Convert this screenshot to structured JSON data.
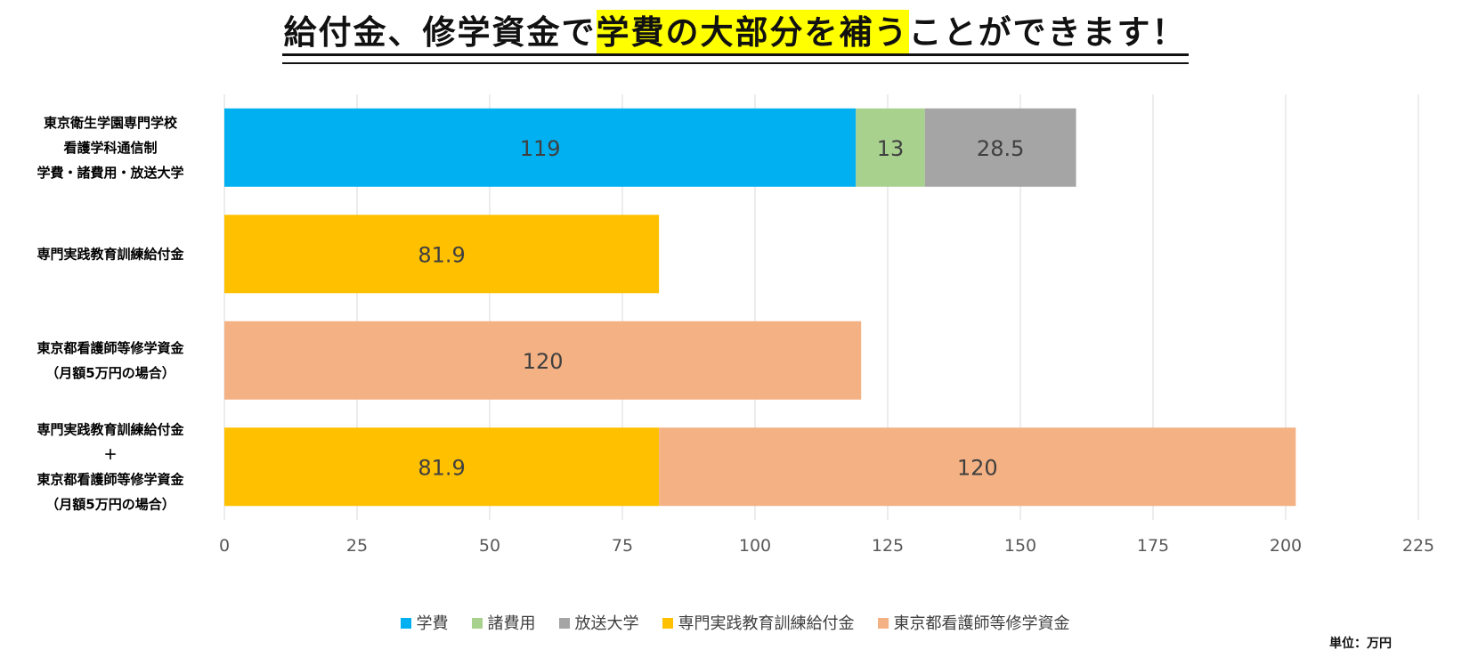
{
  "title": {
    "part1": "給付金、修学資金で",
    "highlight": "学費の大部分を補う",
    "part2": "ことができます！"
  },
  "unit_label": "単位：万円",
  "colors": {
    "学費": "#00b0f0",
    "諸費用": "#a9d18e",
    "放送大学": "#a5a5a5",
    "専門実践教育訓練給付金": "#ffc000",
    "東京都看護師等修学資金": "#f4b183"
  },
  "chart_data": {
    "type": "bar",
    "orientation": "horizontal",
    "stacked": true,
    "xlim": [
      0,
      225
    ],
    "x_ticks": [
      0,
      25,
      50,
      75,
      100,
      125,
      150,
      175,
      200,
      225
    ],
    "grid": true,
    "legend_position": "bottom",
    "categories": [
      [
        "東京衛生学園専門学校",
        "看護学科通信制",
        "学費・諸費用・放送大学"
      ],
      [
        "専門実践教育訓練給付金"
      ],
      [
        "東京都看護師等修学資金",
        "（月額5万円の場合）"
      ],
      [
        "専門実践教育訓練給付金",
        "＋",
        "東京都看護師等修学資金",
        "（月額5万円の場合）"
      ]
    ],
    "series": [
      {
        "name": "学費",
        "values": [
          119,
          null,
          null,
          null
        ]
      },
      {
        "name": "諸費用",
        "values": [
          13,
          null,
          null,
          null
        ]
      },
      {
        "name": "放送大学",
        "values": [
          28.5,
          null,
          null,
          null
        ]
      },
      {
        "name": "専門実践教育訓練給付金",
        "values": [
          null,
          81.9,
          null,
          81.9
        ]
      },
      {
        "name": "東京都看護師等修学資金",
        "values": [
          null,
          null,
          120,
          120
        ]
      }
    ]
  }
}
